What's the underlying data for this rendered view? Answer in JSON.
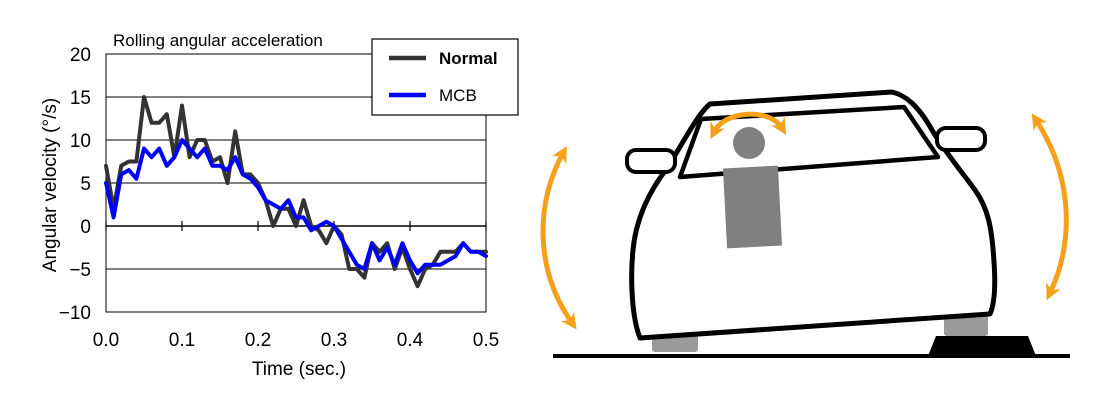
{
  "chart_data": {
    "type": "line",
    "title": "Rolling angular acceleration",
    "xlabel": "Time (sec.)",
    "ylabel": "Angular velocity (°/s)",
    "xlim": [
      0,
      0.5
    ],
    "ylim": [
      -10,
      20
    ],
    "xticks": [
      0,
      0.1,
      0.2,
      0.3,
      0.4,
      0.5
    ],
    "xtick_labels": [
      "0.0",
      "0.1",
      "0.2",
      "0.3",
      "0.4",
      "0.5"
    ],
    "yticks": [
      -10,
      -5,
      0,
      5,
      10,
      15,
      20
    ],
    "ytick_labels": [
      "−10",
      "−5",
      "0",
      "5",
      "10",
      "15",
      "20"
    ],
    "grid": "horizontal",
    "legend": "top-right",
    "series": [
      {
        "name": "Normal",
        "color": "#333333",
        "bold_label": true,
        "x": [
          0,
          0.01,
          0.02,
          0.03,
          0.04,
          0.05,
          0.06,
          0.07,
          0.08,
          0.09,
          0.1,
          0.11,
          0.12,
          0.13,
          0.14,
          0.15,
          0.16,
          0.17,
          0.18,
          0.19,
          0.2,
          0.21,
          0.22,
          0.23,
          0.24,
          0.25,
          0.26,
          0.27,
          0.28,
          0.29,
          0.3,
          0.31,
          0.32,
          0.33,
          0.34,
          0.35,
          0.36,
          0.37,
          0.38,
          0.39,
          0.4,
          0.41,
          0.42,
          0.43,
          0.44,
          0.45,
          0.46,
          0.47,
          0.48,
          0.49,
          0.5
        ],
        "y": [
          7,
          2,
          7,
          7.5,
          7.5,
          15,
          12,
          12,
          13,
          8,
          14,
          8,
          10,
          10,
          7.5,
          8,
          5,
          11,
          6,
          6,
          5,
          3,
          0,
          2,
          2,
          0,
          3,
          0,
          -0.5,
          -2,
          0,
          -1,
          -5,
          -5,
          -6,
          -2,
          -3,
          -2,
          -5,
          -2.5,
          -5,
          -7,
          -5,
          -4.5,
          -3,
          -3,
          -3,
          -2,
          -3,
          -3,
          -3
        ]
      },
      {
        "name": "MCB",
        "color": "#0000ff",
        "bold_label": false,
        "x": [
          0,
          0.01,
          0.02,
          0.03,
          0.04,
          0.05,
          0.06,
          0.07,
          0.08,
          0.09,
          0.1,
          0.11,
          0.12,
          0.13,
          0.14,
          0.15,
          0.16,
          0.17,
          0.18,
          0.19,
          0.2,
          0.21,
          0.22,
          0.23,
          0.24,
          0.25,
          0.26,
          0.27,
          0.28,
          0.29,
          0.3,
          0.31,
          0.32,
          0.33,
          0.34,
          0.35,
          0.36,
          0.37,
          0.38,
          0.39,
          0.4,
          0.41,
          0.42,
          0.43,
          0.44,
          0.45,
          0.46,
          0.47,
          0.48,
          0.49,
          0.5
        ],
        "y": [
          5,
          1,
          6,
          6.5,
          5.5,
          9,
          8,
          9,
          7,
          8,
          10,
          9,
          8,
          9,
          7,
          7,
          6.5,
          8,
          6,
          5.5,
          4.5,
          3,
          2.5,
          2,
          3,
          1,
          1,
          -0.5,
          0,
          0.5,
          0,
          -1.5,
          -3,
          -4.5,
          -5,
          -2,
          -4,
          -2.5,
          -4.5,
          -2,
          -4,
          -5.5,
          -4.5,
          -4.5,
          -4.5,
          -4,
          -3.5,
          -2,
          -3,
          -3,
          -3.5
        ]
      }
    ]
  },
  "illustration": {
    "car_outline_color": "#000000",
    "occupant_color": "#808080",
    "arrow_color": "#f5a019",
    "bump_color": "#000000"
  }
}
